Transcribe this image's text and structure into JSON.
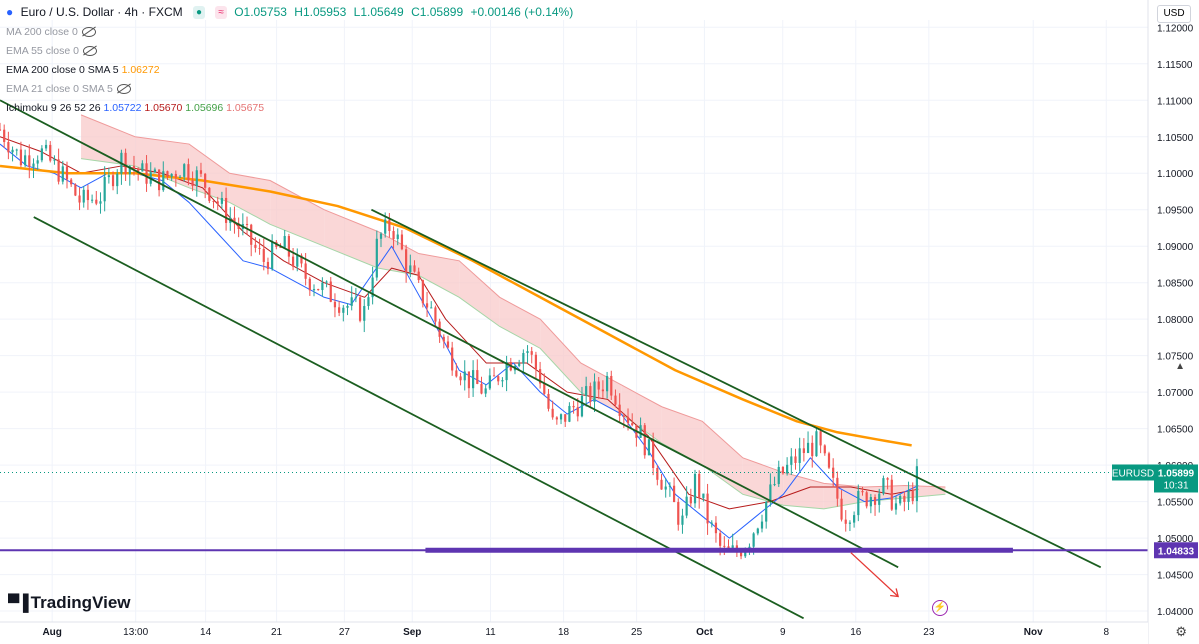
{
  "header": {
    "symbol": "Euro / U.S. Dollar · 4h · FXCM",
    "open": "O1.05753",
    "high": "H1.05953",
    "low": "L1.05649",
    "close": "C1.05899",
    "change": "+0.00146 (+0.14%)"
  },
  "indicators": {
    "ma200": "MA 200 close 0",
    "ema55": "EMA 55 close 0",
    "ema200_name": "EMA 200 close 0 SMA 5",
    "ema200_value": "1.06272",
    "ema21": "EMA 21 close 0 SMA 5",
    "ichimoku_name": "Ichimoku 9 26 52 26",
    "ichimoku_values": [
      "1.05722",
      "1.05670",
      "1.05696",
      "1.05675"
    ]
  },
  "currency_button": "USD",
  "logo_text": "TradingView",
  "colors": {
    "ema200": "#ff9800",
    "tenkan": "#2962ff",
    "kijun": "#b71c1c",
    "cloud_bear": "#f8c9c9",
    "cloud_bull": "#c8e6c9",
    "channel": "#1b5e20",
    "support": "#5e35b1",
    "up": "#26a69a",
    "down": "#ef5350",
    "price_badge": "#089981"
  },
  "chart_data": {
    "type": "candlestick",
    "symbol": "EURUSD",
    "timeframe": "4h",
    "ylim": [
      1.0385,
      1.121
    ],
    "y_ticks": [
      "1.12000",
      "1.11500",
      "1.11000",
      "1.10500",
      "1.10000",
      "1.09500",
      "1.09000",
      "1.08500",
      "1.08000",
      "1.07500",
      "1.07000",
      "1.06500",
      "1.06000",
      "1.05500",
      "1.05000",
      "1.04500",
      "1.04000"
    ],
    "x_ticks": [
      "Aug",
      "13:00",
      "14",
      "21",
      "27",
      "Sep",
      "11",
      "18",
      "25",
      "Oct",
      "9",
      "16",
      "23",
      "Nov",
      "8"
    ],
    "last_price": {
      "label": "EURUSD",
      "value": "1.05899",
      "countdown": "10:31"
    },
    "support_level": "1.04833",
    "price_path": [
      [
        0,
        1.106
      ],
      [
        3,
        1.102
      ],
      [
        6,
        1.103
      ],
      [
        9,
        1.1
      ],
      [
        12,
        1.096
      ],
      [
        15,
        1.097
      ],
      [
        18,
        1.102
      ],
      [
        21,
        1.1
      ],
      [
        24,
        1.099
      ],
      [
        27,
        1.101
      ],
      [
        30,
        1.099
      ],
      [
        33,
        1.095
      ],
      [
        36,
        1.092
      ],
      [
        39,
        1.088
      ],
      [
        42,
        1.09
      ],
      [
        45,
        1.086
      ],
      [
        48,
        1.084
      ],
      [
        51,
        1.082
      ],
      [
        54,
        1.081
      ],
      [
        56,
        1.091
      ],
      [
        58,
        1.093
      ],
      [
        60,
        1.088
      ],
      [
        62,
        1.084
      ],
      [
        64,
        1.081
      ],
      [
        66,
        1.076
      ],
      [
        69,
        1.072
      ],
      [
        72,
        1.07
      ],
      [
        75,
        1.074
      ],
      [
        78,
        1.076
      ],
      [
        80,
        1.072
      ],
      [
        82,
        1.065
      ],
      [
        85,
        1.068
      ],
      [
        88,
        1.07
      ],
      [
        90,
        1.072
      ],
      [
        92,
        1.068
      ],
      [
        95,
        1.064
      ],
      [
        97,
        1.06
      ],
      [
        99,
        1.056
      ],
      [
        101,
        1.052
      ],
      [
        103,
        1.058
      ],
      [
        105,
        1.052
      ],
      [
        107,
        1.048
      ],
      [
        109,
        1.048
      ],
      [
        111,
        1.05
      ],
      [
        113,
        1.054
      ],
      [
        115,
        1.058
      ],
      [
        117,
        1.06
      ],
      [
        119,
        1.062
      ],
      [
        121,
        1.063
      ],
      [
        123,
        1.058
      ],
      [
        125,
        1.053
      ],
      [
        127,
        1.055
      ],
      [
        129,
        1.056
      ],
      [
        131,
        1.057
      ],
      [
        133,
        1.054
      ],
      [
        135,
        1.056
      ],
      [
        136,
        1.059
      ]
    ],
    "ema200_path": [
      [
        0,
        1.101
      ],
      [
        10,
        1.1
      ],
      [
        20,
        1.1
      ],
      [
        30,
        1.099
      ],
      [
        40,
        1.0975
      ],
      [
        50,
        1.0955
      ],
      [
        60,
        1.0925
      ],
      [
        70,
        1.088
      ],
      [
        80,
        1.083
      ],
      [
        90,
        1.078
      ],
      [
        100,
        1.073
      ],
      [
        110,
        1.069
      ],
      [
        118,
        1.066
      ],
      [
        124,
        1.0645
      ],
      [
        130,
        1.0635
      ],
      [
        135,
        1.0627
      ]
    ],
    "tenkan_path": [
      [
        0,
        1.104
      ],
      [
        4,
        1.101
      ],
      [
        8,
        1.1
      ],
      [
        12,
        1.098
      ],
      [
        16,
        1.1
      ],
      [
        20,
        1.1
      ],
      [
        24,
        1.099
      ],
      [
        28,
        1.096
      ],
      [
        32,
        1.092
      ],
      [
        36,
        1.088
      ],
      [
        40,
        1.087
      ],
      [
        44,
        1.085
      ],
      [
        48,
        1.083
      ],
      [
        52,
        1.082
      ],
      [
        55,
        1.086
      ],
      [
        58,
        1.09
      ],
      [
        61,
        1.085
      ],
      [
        64,
        1.08
      ],
      [
        68,
        1.073
      ],
      [
        72,
        1.071
      ],
      [
        76,
        1.074
      ],
      [
        80,
        1.07
      ],
      [
        84,
        1.067
      ],
      [
        88,
        1.069
      ],
      [
        92,
        1.067
      ],
      [
        96,
        1.062
      ],
      [
        100,
        1.056
      ],
      [
        104,
        1.053
      ],
      [
        108,
        1.05
      ],
      [
        112,
        1.053
      ],
      [
        116,
        1.056
      ],
      [
        120,
        1.061
      ],
      [
        124,
        1.057
      ],
      [
        128,
        1.055
      ],
      [
        132,
        1.0555
      ],
      [
        136,
        1.0572
      ]
    ],
    "kijun_path": [
      [
        0,
        1.105
      ],
      [
        6,
        1.103
      ],
      [
        12,
        1.1
      ],
      [
        18,
        1.101
      ],
      [
        24,
        1.1
      ],
      [
        30,
        1.098
      ],
      [
        36,
        1.092
      ],
      [
        42,
        1.088
      ],
      [
        48,
        1.085
      ],
      [
        54,
        1.083
      ],
      [
        58,
        1.087
      ],
      [
        62,
        1.086
      ],
      [
        66,
        1.08
      ],
      [
        72,
        1.074
      ],
      [
        78,
        1.074
      ],
      [
        84,
        1.07
      ],
      [
        90,
        1.069
      ],
      [
        96,
        1.064
      ],
      [
        102,
        1.056
      ],
      [
        108,
        1.054
      ],
      [
        114,
        1.055
      ],
      [
        120,
        1.057
      ],
      [
        126,
        1.057
      ],
      [
        132,
        1.056
      ],
      [
        136,
        1.0567
      ]
    ],
    "cloud_path": [
      [
        12,
        1.108,
        1.102
      ],
      [
        20,
        1.105,
        1.101
      ],
      [
        28,
        1.104,
        1.098
      ],
      [
        34,
        1.1,
        1.096
      ],
      [
        40,
        1.099,
        1.093
      ],
      [
        48,
        1.095,
        1.09
      ],
      [
        56,
        1.092,
        1.087
      ],
      [
        62,
        1.089,
        1.086
      ],
      [
        68,
        1.088,
        1.083
      ],
      [
        74,
        1.083,
        1.079
      ],
      [
        80,
        1.08,
        1.076
      ],
      [
        86,
        1.074,
        1.07
      ],
      [
        92,
        1.071,
        1.067
      ],
      [
        98,
        1.068,
        1.063
      ],
      [
        104,
        1.066,
        1.06
      ],
      [
        110,
        1.061,
        1.056
      ],
      [
        116,
        1.059,
        1.0545
      ],
      [
        122,
        1.0575,
        1.054
      ],
      [
        128,
        1.057,
        1.055
      ],
      [
        134,
        1.0572,
        1.0555
      ],
      [
        140,
        1.057,
        1.056
      ]
    ],
    "channel_lines": [
      {
        "from": [
          0,
          1.11
        ],
        "to": [
          133,
          1.046
        ]
      },
      {
        "from": [
          55,
          1.095
        ],
        "to": [
          163,
          1.046
        ]
      },
      {
        "from": [
          5,
          1.094
        ],
        "to": [
          119,
          1.039
        ]
      }
    ],
    "projection_arrow": {
      "from": [
        126,
        1.048
      ],
      "to": [
        133,
        1.042
      ]
    }
  }
}
